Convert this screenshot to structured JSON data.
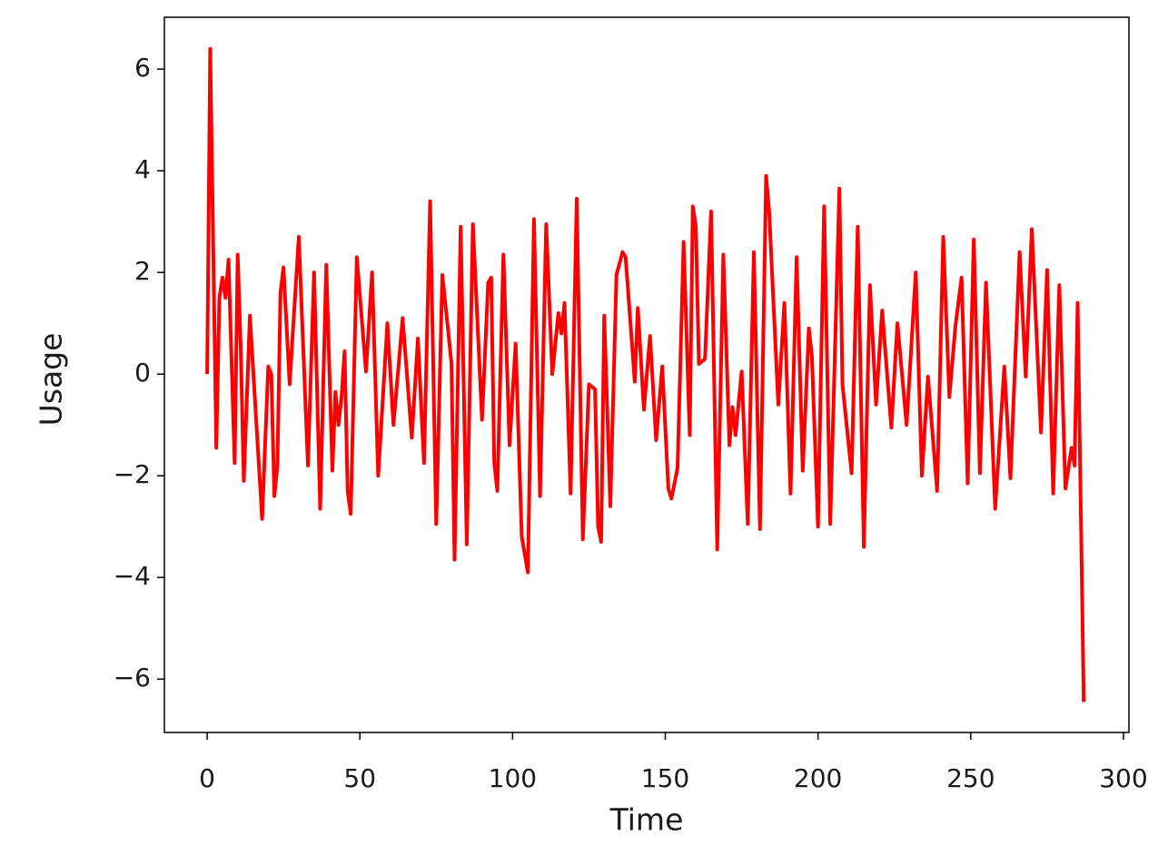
{
  "chart_data": {
    "type": "line",
    "x_label": "Time",
    "y_label": "Usage",
    "x": [
      0,
      1,
      3,
      4,
      5,
      6,
      7,
      9,
      10,
      11,
      12,
      14,
      18,
      20,
      21,
      22,
      23,
      24,
      25,
      27,
      30,
      33,
      35,
      37,
      39,
      41,
      42,
      43,
      44,
      45,
      46,
      47,
      49,
      52,
      54,
      56,
      59,
      61,
      64,
      67,
      69,
      71,
      73,
      75,
      77,
      79,
      80,
      81,
      83,
      85,
      87,
      90,
      92,
      93,
      94,
      95,
      97,
      99,
      101,
      103,
      105,
      107,
      109,
      111,
      113,
      115,
      116,
      117,
      119,
      121,
      123,
      125,
      127,
      128,
      129,
      130,
      132,
      134,
      136,
      137,
      140,
      141,
      143,
      145,
      147,
      149,
      151,
      152,
      154,
      156,
      158,
      159,
      160,
      161,
      163,
      165,
      167,
      169,
      171,
      172,
      173,
      175,
      177,
      179,
      181,
      183,
      184,
      187,
      189,
      191,
      193,
      195,
      197,
      198,
      200,
      202,
      204,
      207,
      208,
      211,
      213,
      215,
      217,
      219,
      221,
      224,
      226,
      229,
      232,
      234,
      236,
      239,
      241,
      243,
      245,
      247,
      249,
      251,
      253,
      255,
      258,
      261,
      263,
      266,
      268,
      270,
      273,
      275,
      277,
      279,
      281,
      283,
      284,
      285,
      287
    ],
    "values": [
      0,
      6.4,
      -1.45,
      1.5,
      1.9,
      1.5,
      2.25,
      -1.75,
      2.35,
      0.5,
      -2.1,
      1.15,
      -2.85,
      0.15,
      0,
      -2.4,
      -1.8,
      1.6,
      2.1,
      -0.2,
      2.7,
      -1.8,
      2,
      -2.65,
      2.15,
      -1.9,
      -0.35,
      -1,
      -0.45,
      0.45,
      -2.3,
      -2.75,
      2.3,
      0.05,
      2,
      -2,
      1,
      -1,
      1.1,
      -1.25,
      0.7,
      -1.75,
      3.4,
      -2.95,
      1.95,
      0.8,
      0.2,
      -3.65,
      2.9,
      -3.35,
      2.95,
      -0.9,
      1.8,
      1.9,
      -1.75,
      -2.3,
      2.35,
      -1.4,
      0.6,
      -3.2,
      -3.9,
      3.05,
      -2.4,
      2.95,
      0,
      1.2,
      0.8,
      1.4,
      -2.35,
      3.45,
      -3.25,
      -0.2,
      -0.3,
      -3,
      -3.3,
      1.15,
      -2.6,
      1.95,
      2.4,
      2.3,
      -0.15,
      1.3,
      -0.7,
      0.75,
      -1.3,
      0.15,
      -2.25,
      -2.45,
      -1.85,
      2.6,
      -1.2,
      3.3,
      2.9,
      0.2,
      0.3,
      3.2,
      -3.45,
      2.35,
      -1.4,
      -0.65,
      -1.2,
      0.05,
      -2.95,
      2.4,
      -3.05,
      3.9,
      3.2,
      -0.6,
      1.4,
      -2.35,
      2.3,
      -1.9,
      0.9,
      0.35,
      -3,
      3.3,
      -2.95,
      3.65,
      -0.2,
      -1.95,
      2.9,
      -3.4,
      1.75,
      -0.6,
      1.25,
      -1.05,
      1,
      -1,
      2,
      -2,
      -0.05,
      -2.3,
      2.7,
      -0.45,
      0.95,
      1.9,
      -2.15,
      2.65,
      -1.95,
      1.8,
      -2.65,
      0.15,
      -2.05,
      2.4,
      -0.05,
      2.85,
      -1.15,
      2.05,
      -2.35,
      1.75,
      -2.25,
      -1.45,
      -1.8,
      1.4,
      -6.45
    ],
    "color": "#ff0000",
    "xlim": [
      -14,
      301.8
    ],
    "ylim": [
      -7.05,
      7.02
    ],
    "xticks": [
      0,
      50,
      100,
      150,
      200,
      250,
      300
    ],
    "yticks": [
      {
        "value": -6,
        "label": "−6"
      },
      {
        "value": -4,
        "label": "−4"
      },
      {
        "value": -2,
        "label": "−2"
      },
      0,
      2,
      4,
      6
    ],
    "grid": false
  }
}
